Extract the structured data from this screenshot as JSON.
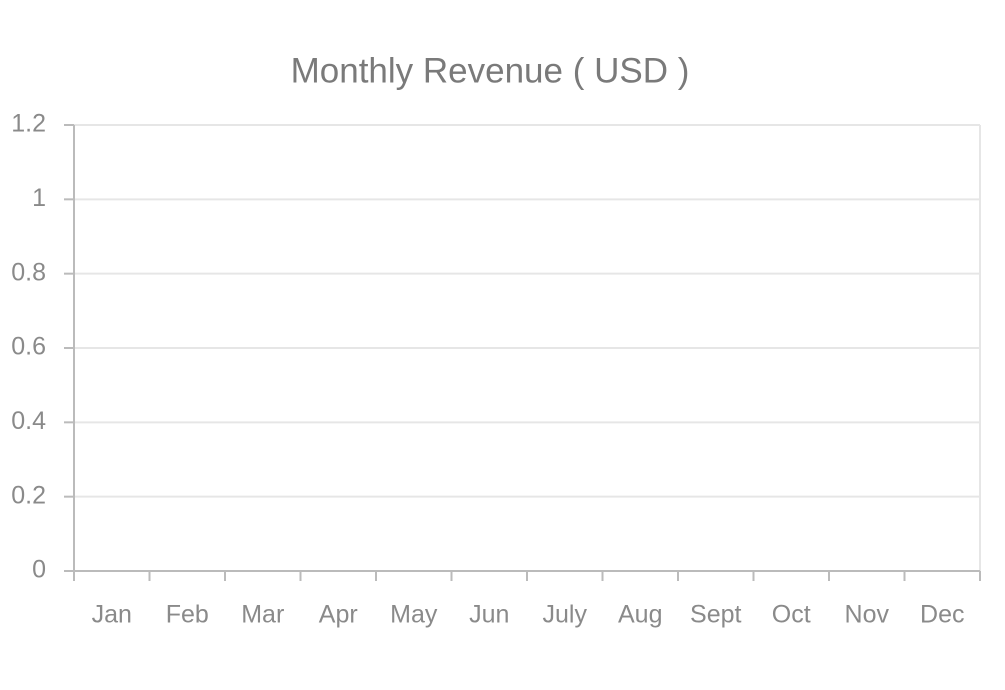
{
  "chart_data": {
    "type": "bar",
    "title": "Monthly Revenue ( USD )",
    "categories": [
      "Jan",
      "Feb",
      "Mar",
      "Apr",
      "May",
      "Jun",
      "July",
      "Aug",
      "Sept",
      "Oct",
      "Nov",
      "Dec"
    ],
    "ylim": [
      0,
      1.2
    ],
    "yticks": [
      0,
      0.2,
      0.4,
      0.6,
      0.8,
      1,
      1.2
    ],
    "grid": true
  }
}
